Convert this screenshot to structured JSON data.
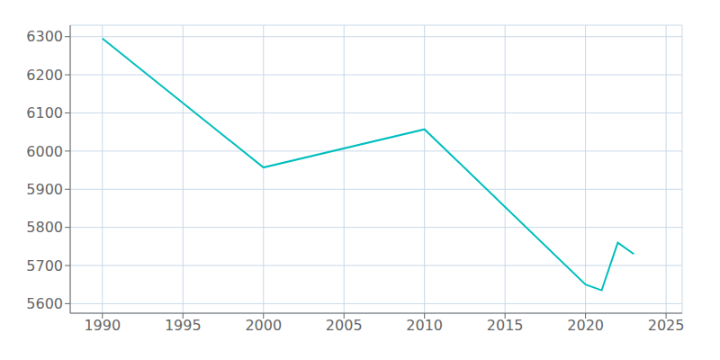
{
  "chart_data": {
    "type": "line",
    "x": [
      1990,
      2000,
      2010,
      2020,
      2021,
      2022,
      2023
    ],
    "values": [
      6295,
      5957,
      6057,
      5650,
      5635,
      5760,
      5730
    ],
    "color": "#00BEBE",
    "xlim": [
      1988,
      2026
    ],
    "ylim": [
      5575,
      6330
    ],
    "xticks": [
      1990,
      1995,
      2000,
      2005,
      2010,
      2015,
      2020,
      2025
    ],
    "yticks": [
      5600,
      5700,
      5800,
      5900,
      6000,
      6100,
      6200,
      6300
    ],
    "grid": true
  }
}
